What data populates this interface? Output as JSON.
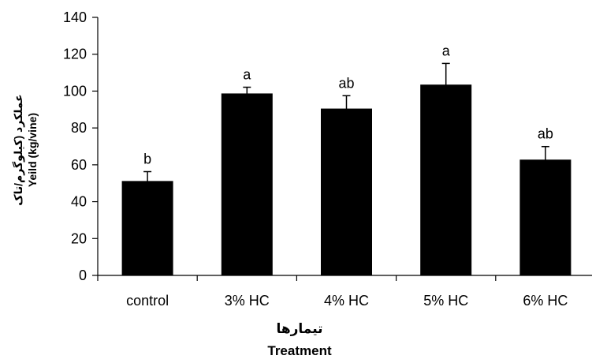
{
  "chart_data": {
    "type": "bar",
    "title": "",
    "categories": [
      "control",
      "3% HC",
      "4% HC",
      "5% HC",
      "6% HC"
    ],
    "values": [
      51,
      98.5,
      90.3,
      103.3,
      62.6
    ],
    "error_plus": [
      5.3,
      3.6,
      7.2,
      11.7,
      7.3
    ],
    "significance_letters": [
      "b",
      "a",
      "ab",
      "a",
      "ab"
    ],
    "xlabel_fa": "تیمارها",
    "xlabel": "Treatment",
    "ylabel_fa": "عملکرد (کیلوگرم/تاک",
    "ylabel": "Yeild (kg/vine)",
    "ylim": [
      0,
      140
    ],
    "yticks": [
      0,
      20,
      40,
      60,
      80,
      100,
      120,
      140
    ],
    "grid": false,
    "legend": "none",
    "bar_color": "#000000"
  }
}
